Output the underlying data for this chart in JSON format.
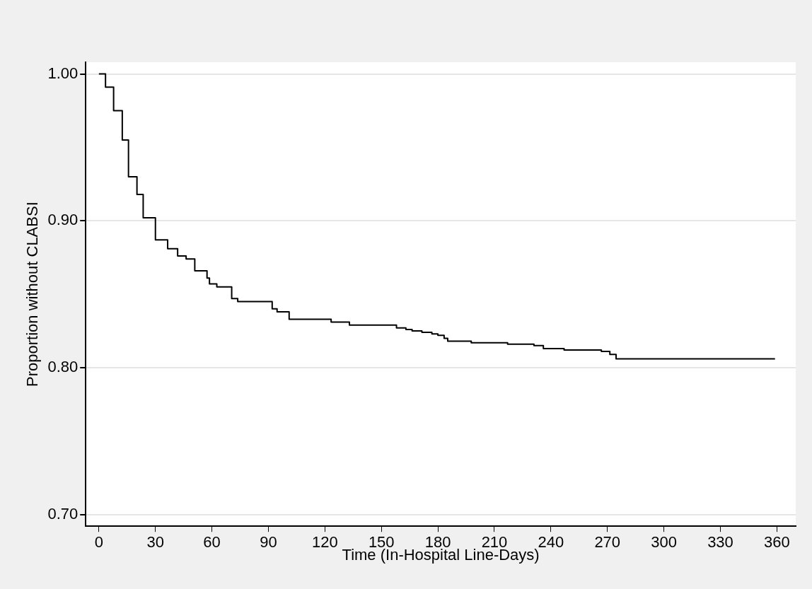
{
  "chart_data": {
    "type": "step",
    "xlabel": "Time (In-Hospital Line-Days)",
    "ylabel": "Proportion without CLABSI",
    "xlim": [
      -7,
      370
    ],
    "ylim": [
      0.692,
      1.008
    ],
    "xticks": [
      0,
      30,
      60,
      90,
      120,
      150,
      180,
      210,
      240,
      270,
      300,
      330,
      360
    ],
    "yticks": [
      {
        "value": 0.7,
        "label": "0.70"
      },
      {
        "value": 0.8,
        "label": "0.80"
      },
      {
        "value": 0.9,
        "label": "0.90"
      },
      {
        "value": 1,
        "label": "1.00"
      }
    ],
    "grid": "y",
    "legend": false,
    "marker": "none",
    "line_style": "solid",
    "series": [
      {
        "color": "#000000",
        "x": [
          0,
          3.5,
          7.8,
          12.4,
          15.7,
          20.2,
          23.5,
          30,
          36.5,
          41.8,
          46.3,
          50.9,
          57.4,
          58.7,
          62.6,
          70.5,
          73.7,
          92,
          94.6,
          101,
          123.3,
          133,
          158,
          163,
          166.3,
          171.5,
          176.8,
          180,
          183.3,
          185.2,
          197.7,
          217,
          231,
          236,
          247,
          266.8,
          271.3,
          274.6,
          359
        ],
        "values": [
          1.0,
          0.991,
          0.975,
          0.955,
          0.93,
          0.918,
          0.902,
          0.887,
          0.881,
          0.876,
          0.874,
          0.866,
          0.861,
          0.857,
          0.855,
          0.847,
          0.845,
          0.84,
          0.838,
          0.833,
          0.831,
          0.829,
          0.827,
          0.826,
          0.825,
          0.824,
          0.823,
          0.822,
          0.82,
          0.818,
          0.817,
          0.816,
          0.815,
          0.813,
          0.812,
          0.811,
          0.809,
          0.806,
          0.806
        ]
      }
    ]
  }
}
